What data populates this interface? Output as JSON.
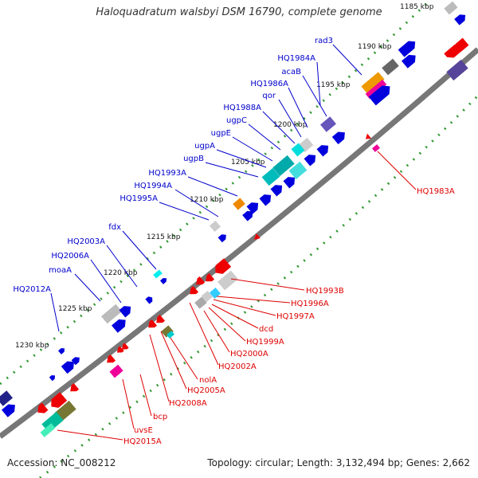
{
  "title": "Haloquadratum walsbyi DSM 16790, complete genome",
  "footer": {
    "accession": "Accession: NC_008212",
    "summary": "Topology: circular; Length: 3,132,494 bp; Genes: 2,662"
  },
  "colors": {
    "backbone": "#777777",
    "tick": "#339933",
    "forward_label": "#0000cc",
    "reverse_label": "#dd0000"
  },
  "scale": {
    "unit": "kbp",
    "ticks": [
      {
        "label": "1185 kbp"
      },
      {
        "label": "1190 kbp"
      },
      {
        "label": "1195 kbp"
      },
      {
        "label": "1200 kbp"
      },
      {
        "label": "1205 kbp"
      },
      {
        "label": "1210 kbp"
      },
      {
        "label": "1215 kbp"
      },
      {
        "label": "1220 kbp"
      },
      {
        "label": "1225 kbp"
      },
      {
        "label": "1230 kbp"
      }
    ]
  },
  "forward_genes": [
    {
      "label": "rad3"
    },
    {
      "label": "HQ1984A"
    },
    {
      "label": "acaB"
    },
    {
      "label": "HQ1986A"
    },
    {
      "label": "qor"
    },
    {
      "label": "HQ1988A"
    },
    {
      "label": "ugpC"
    },
    {
      "label": "ugpE"
    },
    {
      "label": "ugpA"
    },
    {
      "label": "ugpB"
    },
    {
      "label": "HQ1993A"
    },
    {
      "label": "HQ1994A"
    },
    {
      "label": "HQ1995A"
    },
    {
      "label": "fdx"
    },
    {
      "label": "HQ2003A"
    },
    {
      "label": "HQ2006A"
    },
    {
      "label": "moaA"
    },
    {
      "label": "HQ2012A"
    }
  ],
  "reverse_genes": [
    {
      "label": "HQ1983A"
    },
    {
      "label": "HQ1993B"
    },
    {
      "label": "HQ1996A"
    },
    {
      "label": "HQ1997A"
    },
    {
      "label": "dcd"
    },
    {
      "label": "HQ1999A"
    },
    {
      "label": "HQ2000A"
    },
    {
      "label": "HQ2002A"
    },
    {
      "label": "nolA"
    },
    {
      "label": "HQ2005A"
    },
    {
      "label": "HQ2008A"
    },
    {
      "label": "bcp"
    },
    {
      "label": "uvsE"
    },
    {
      "label": "HQ2015A"
    }
  ]
}
